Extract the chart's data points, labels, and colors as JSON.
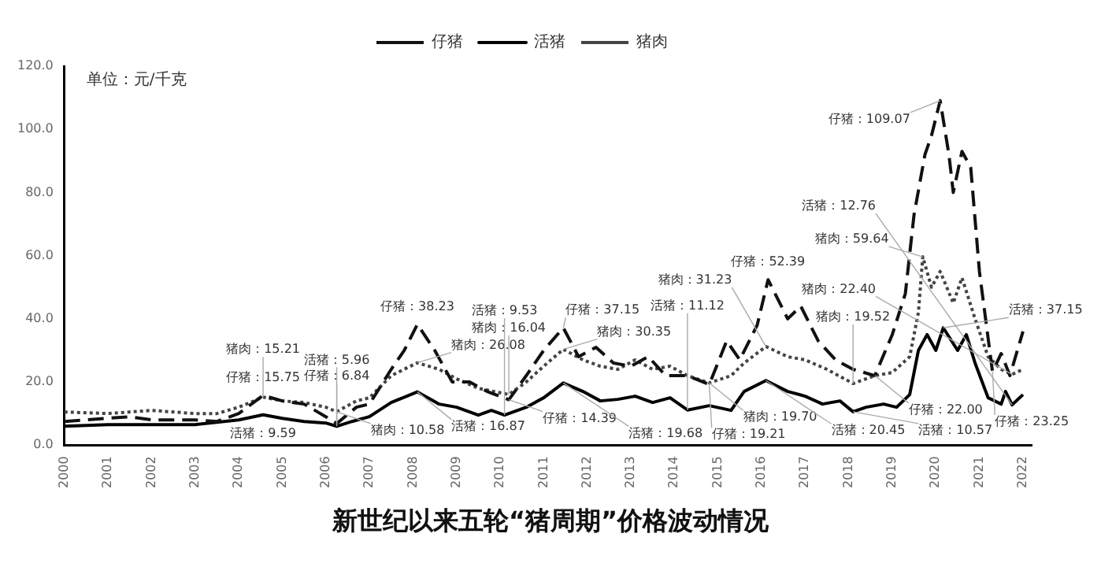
{
  "chart_data": {
    "type": "line",
    "title": "新世纪以来五轮“猪周期”价格波动情况",
    "ylabel": "单位：元/千克",
    "legend": "top",
    "grid": false,
    "marker": "none",
    "xlim": [
      2000,
      2022.2
    ],
    "xticks": [
      2000,
      2001,
      2002,
      2003,
      2004,
      2005,
      2006,
      2007,
      2008,
      2009,
      2010,
      2011,
      2012,
      2013,
      2014,
      2015,
      2016,
      2017,
      2018,
      2019,
      2020,
      2021,
      2022
    ],
    "ylim": [
      0,
      120
    ],
    "yticks": [
      {
        "value": 0,
        "label": "0.0"
      },
      {
        "value": 20,
        "label": "20.0"
      },
      {
        "value": 40,
        "label": "40.0"
      },
      {
        "value": 60,
        "label": "60.0"
      },
      {
        "value": 80,
        "label": "80.0"
      },
      {
        "value": 100,
        "label": "100.0"
      },
      {
        "value": 120,
        "label": "120.0"
      }
    ],
    "series": [
      {
        "name": "仔猪",
        "color": "#111111",
        "line_style": "dashed",
        "x": [
          2000,
          2001,
          2001.5,
          2002,
          2003,
          2003.5,
          2004,
          2004.56,
          2005,
          2005.5,
          2006,
          2006.25,
          2006.7,
          2007,
          2007.5,
          2007.8,
          2008.1,
          2008.5,
          2008.9,
          2009.3,
          2009.7,
          2010.2,
          2010.6,
          2011,
          2011.45,
          2011.8,
          2012.2,
          2012.6,
          2013,
          2013.4,
          2013.8,
          2014.3,
          2014.8,
          2015.2,
          2015.5,
          2015.9,
          2016.15,
          2016.6,
          2016.9,
          2017.3,
          2017.7,
          2018.1,
          2018.6,
          2019,
          2019.3,
          2019.5,
          2019.75,
          2019.9,
          2020.1,
          2020.3,
          2020.4,
          2020.6,
          2020.8,
          2021,
          2021.3,
          2021.5,
          2021.7,
          2022
        ],
        "values": [
          7.5,
          8.5,
          9,
          8,
          8,
          7.5,
          10,
          15.75,
          14,
          13,
          9,
          6.84,
          12,
          13,
          24,
          30,
          38.23,
          30,
          20,
          20,
          17,
          14.39,
          22,
          30,
          37.15,
          28,
          31,
          26,
          25,
          28,
          22,
          22,
          19.21,
          33,
          27,
          38,
          52.39,
          40,
          44,
          33,
          27,
          24,
          22,
          35,
          48,
          73,
          92,
          98,
          109.07,
          92,
          80,
          93,
          88,
          55,
          23.25,
          29,
          22,
          36
        ]
      },
      {
        "name": "活猪",
        "color": "#000000",
        "line_style": "solid",
        "x": [
          2000,
          2001,
          2002,
          2003,
          2004,
          2004.56,
          2005,
          2005.5,
          2006,
          2006.25,
          2006.6,
          2007,
          2007.5,
          2008.1,
          2008.6,
          2009,
          2009.5,
          2009.8,
          2010.1,
          2010.6,
          2011,
          2011.45,
          2011.9,
          2012.3,
          2012.7,
          2013.1,
          2013.5,
          2013.9,
          2014.3,
          2014.8,
          2015.3,
          2015.6,
          2016.1,
          2016.6,
          2017,
          2017.4,
          2017.8,
          2018.1,
          2018.4,
          2018.8,
          2019.1,
          2019.4,
          2019.6,
          2019.8,
          2020,
          2020.17,
          2020.5,
          2020.7,
          2020.9,
          2021.2,
          2021.5,
          2021.6,
          2021.75,
          2022
        ],
        "values": [
          6,
          6.5,
          6.5,
          6.5,
          8,
          9.59,
          8.5,
          7.5,
          7,
          5.96,
          7.5,
          9,
          13.5,
          16.87,
          13,
          12,
          9.5,
          11,
          9.53,
          12,
          15,
          19.68,
          17,
          14,
          14.5,
          15.5,
          13.5,
          15,
          11.12,
          12.5,
          11,
          17,
          20.45,
          17,
          15.5,
          13,
          14,
          10.57,
          12,
          13,
          12,
          16,
          30,
          35,
          30,
          37.15,
          30,
          35,
          26,
          15,
          13,
          17,
          12.76,
          16
        ]
      },
      {
        "name": "猪肉",
        "color": "#444444",
        "line_style": "dotted",
        "x": [
          2000,
          2001,
          2002,
          2003,
          2003.5,
          2004,
          2004.56,
          2005,
          2005.5,
          2006,
          2006.25,
          2006.7,
          2007,
          2007.5,
          2008.1,
          2008.6,
          2009,
          2009.5,
          2010.2,
          2010.6,
          2011,
          2011.45,
          2011.9,
          2012.3,
          2012.7,
          2013.1,
          2013.5,
          2013.9,
          2014.3,
          2014.8,
          2015.3,
          2015.6,
          2016.1,
          2016.6,
          2017,
          2017.5,
          2018.1,
          2018.6,
          2019,
          2019.4,
          2019.6,
          2019.7,
          2019.9,
          2020.1,
          2020.4,
          2020.6,
          2020.9,
          2021.2,
          2021.5,
          2021.75,
          2022
        ],
        "values": [
          10.5,
          10,
          11,
          10,
          10,
          12,
          15.21,
          14,
          13.5,
          12,
          10.58,
          14,
          15,
          22,
          26.08,
          24,
          21,
          18,
          16.04,
          20,
          25,
          30.35,
          27,
          25,
          24,
          27,
          24,
          25,
          22,
          19.7,
          22,
          26,
          31.23,
          28,
          27,
          24,
          19.52,
          22,
          23,
          28,
          42,
          59.64,
          50,
          55,
          45,
          53,
          40,
          28,
          24,
          22.4,
          24
        ]
      }
    ],
    "annotations": [
      {
        "text": "仔猪：15.75",
        "x": 2004.56,
        "y": 15.75
      },
      {
        "text": "猪肉：15.21",
        "x": 2004.56,
        "y": 15.21
      },
      {
        "text": "活猪：9.59",
        "x": 2004.56,
        "y": 9.59
      },
      {
        "text": "仔猪：6.84",
        "x": 2006.25,
        "y": 6.84
      },
      {
        "text": "猪肉：10.58",
        "x": 2006.25,
        "y": 10.58
      },
      {
        "text": "活猪：5.96",
        "x": 2006.25,
        "y": 5.96
      },
      {
        "text": "仔猪：38.23",
        "x": 2008.1,
        "y": 38.23
      },
      {
        "text": "猪肉：26.08",
        "x": 2008.1,
        "y": 26.08
      },
      {
        "text": "活猪：16.87",
        "x": 2008.1,
        "y": 16.87
      },
      {
        "text": "仔猪：14.39",
        "x": 2010.2,
        "y": 14.39
      },
      {
        "text": "猪肉：16.04",
        "x": 2010.2,
        "y": 16.04
      },
      {
        "text": "活猪：9.53",
        "x": 2010.1,
        "y": 9.53
      },
      {
        "text": "仔猪：37.15",
        "x": 2011.45,
        "y": 37.15
      },
      {
        "text": "猪肉：30.35",
        "x": 2011.45,
        "y": 30.35
      },
      {
        "text": "活猪：19.68",
        "x": 2011.45,
        "y": 19.68
      },
      {
        "text": "仔猪：19.21",
        "x": 2014.8,
        "y": 19.21
      },
      {
        "text": "猪肉：19.70",
        "x": 2014.8,
        "y": 19.7
      },
      {
        "text": "活猪：11.12",
        "x": 2014.3,
        "y": 11.12
      },
      {
        "text": "仔猪：52.39",
        "x": 2016.15,
        "y": 52.39
      },
      {
        "text": "猪肉：31.23",
        "x": 2016.1,
        "y": 31.23
      },
      {
        "text": "活猪：20.45",
        "x": 2016.1,
        "y": 20.45
      },
      {
        "text": "仔猪：22.00",
        "x": 2018.6,
        "y": 22
      },
      {
        "text": "猪肉：19.52",
        "x": 2018.1,
        "y": 19.52
      },
      {
        "text": "活猪：10.57",
        "x": 2018.1,
        "y": 10.57
      },
      {
        "text": "仔猪：109.07",
        "x": 2020.1,
        "y": 109.07
      },
      {
        "text": "猪肉：59.64",
        "x": 2019.7,
        "y": 59.64
      },
      {
        "text": "活猪：37.15",
        "x": 2020.17,
        "y": 37.15
      },
      {
        "text": "仔猪：23.25",
        "x": 2021.3,
        "y": 23.25
      },
      {
        "text": "猪肉：22.40",
        "x": 2021.75,
        "y": 22.4
      },
      {
        "text": "活猪：12.76",
        "x": 2021.75,
        "y": 12.76
      }
    ]
  }
}
